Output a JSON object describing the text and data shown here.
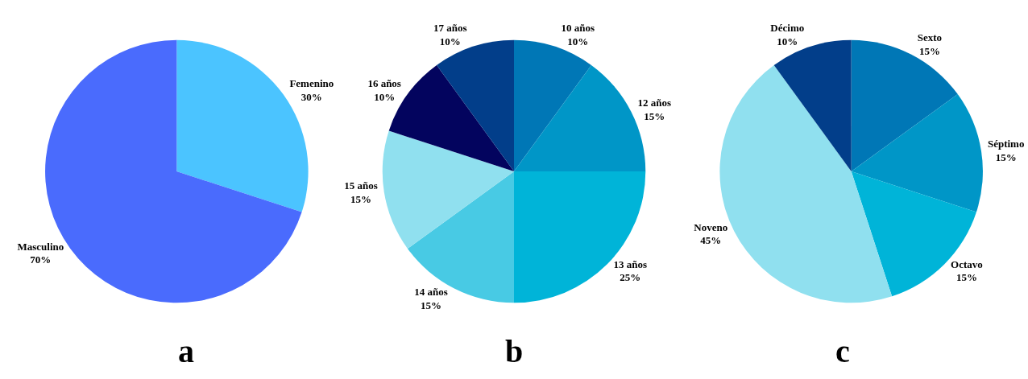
{
  "chart_data": [
    {
      "type": "pie",
      "title": "a",
      "categories": [
        "Femenino",
        "Masculino"
      ],
      "values": [
        30,
        70
      ],
      "value_labels": [
        "30%",
        "70%"
      ],
      "colors": [
        "#4bc4ff",
        "#4a6bfd"
      ]
    },
    {
      "type": "pie",
      "title": "b",
      "categories": [
        "10 años",
        "12 años",
        "13 años",
        "14 años",
        "15 años",
        "16 años",
        "17 años"
      ],
      "values": [
        10,
        15,
        25,
        15,
        15,
        10,
        10
      ],
      "value_labels": [
        "10%",
        "15%",
        "25%",
        "15%",
        "15%",
        "10%",
        "10%"
      ],
      "colors": [
        "#0077b6",
        "#0096c7",
        "#00b4d8",
        "#48cae4",
        "#90e0ef",
        "#03045e",
        "#023e8a"
      ]
    },
    {
      "type": "pie",
      "title": "c",
      "categories": [
        "Sexto",
        "Séptimo",
        "Octavo",
        "Noveno",
        "Décimo"
      ],
      "values": [
        15,
        15,
        15,
        45,
        10
      ],
      "value_labels": [
        "15%",
        "15%",
        "15%",
        "45%",
        "10%"
      ],
      "colors": [
        "#0077b6",
        "#0096c7",
        "#00b4d8",
        "#90e0ef",
        "#023e8a"
      ]
    }
  ]
}
